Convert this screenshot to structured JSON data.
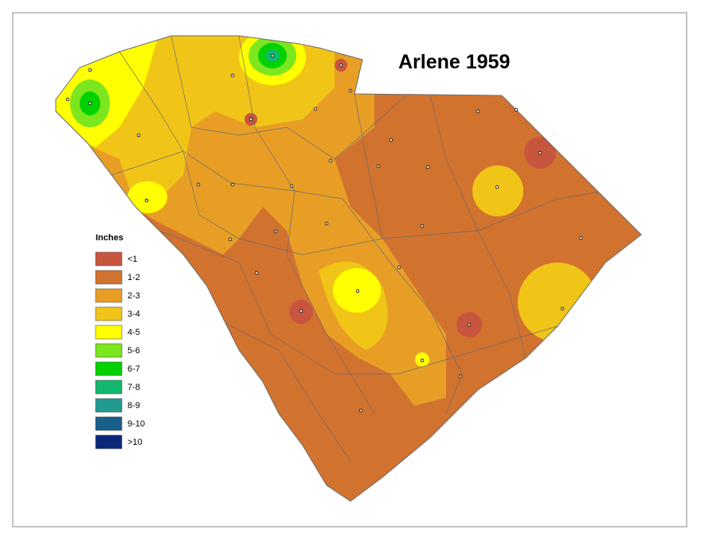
{
  "title": "Arlene 1959",
  "legend": {
    "title": "Inches",
    "items": [
      {
        "label": "<1",
        "color": "#c8553d"
      },
      {
        "label": "1-2",
        "color": "#d2722f"
      },
      {
        "label": "2-3",
        "color": "#e89e25"
      },
      {
        "label": "3-4",
        "color": "#f1c517"
      },
      {
        "label": "4-5",
        "color": "#ffff00"
      },
      {
        "label": "5-6",
        "color": "#7ce61e"
      },
      {
        "label": "6-7",
        "color": "#00d200"
      },
      {
        "label": "7-8",
        "color": "#12b86b"
      },
      {
        "label": "8-9",
        "color": "#239a8f"
      },
      {
        "label": "9-10",
        "color": "#1a5f8a"
      },
      {
        "label": ">10",
        "color": "#0b2878"
      }
    ]
  }
}
